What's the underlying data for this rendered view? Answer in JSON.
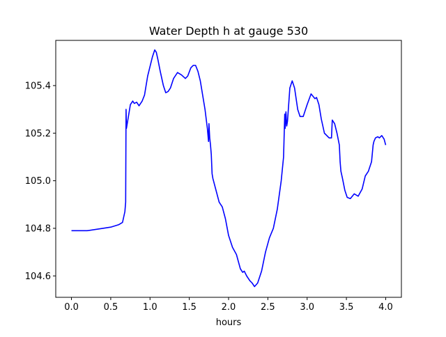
{
  "chart_data": {
    "type": "line",
    "title": "Water Depth h at gauge 530",
    "xlabel": "hours",
    "ylabel": "",
    "xlim": [
      -0.2,
      4.2
    ],
    "ylim": [
      104.51,
      105.59
    ],
    "grid": false,
    "legend": "none",
    "x_ticks": [
      0.0,
      0.5,
      1.0,
      1.5,
      2.0,
      2.5,
      3.0,
      3.5,
      4.0
    ],
    "x_tick_labels": [
      "0.0",
      "0.5",
      "1.0",
      "1.5",
      "2.0",
      "2.5",
      "3.0",
      "3.5",
      "4.0"
    ],
    "y_ticks": [
      104.6,
      104.8,
      105.0,
      105.2,
      105.4
    ],
    "y_tick_labels": [
      "104.6",
      "104.8",
      "105.0",
      "105.2",
      "105.4"
    ],
    "series": [
      {
        "color": "#0000ff",
        "x": [
          0.0,
          0.2,
          0.4,
          0.5,
          0.6,
          0.65,
          0.68,
          0.69,
          0.695,
          0.7,
          0.72,
          0.75,
          0.78,
          0.8,
          0.83,
          0.86,
          0.88,
          0.9,
          0.93,
          0.97,
          1.0,
          1.03,
          1.06,
          1.08,
          1.1,
          1.13,
          1.17,
          1.2,
          1.23,
          1.26,
          1.3,
          1.35,
          1.4,
          1.45,
          1.48,
          1.52,
          1.55,
          1.58,
          1.61,
          1.64,
          1.67,
          1.7,
          1.73,
          1.745,
          1.75,
          1.76,
          1.77,
          1.78,
          1.79,
          1.8,
          1.84,
          1.88,
          1.92,
          1.96,
          2.0,
          2.05,
          2.1,
          2.15,
          2.18,
          2.2,
          2.23,
          2.27,
          2.3,
          2.33,
          2.37,
          2.42,
          2.47,
          2.52,
          2.57,
          2.62,
          2.67,
          2.7,
          2.715,
          2.72,
          2.725,
          2.73,
          2.74,
          2.75,
          2.78,
          2.81,
          2.84,
          2.88,
          2.91,
          2.95,
          3.0,
          3.05,
          3.1,
          3.12,
          3.15,
          3.18,
          3.22,
          3.28,
          3.31,
          3.32,
          3.35,
          3.38,
          3.41,
          3.42,
          3.43,
          3.45,
          3.48,
          3.51,
          3.55,
          3.6,
          3.65,
          3.7,
          3.74,
          3.78,
          3.82,
          3.84,
          3.85,
          3.87,
          3.9,
          3.92,
          3.95,
          3.98,
          4.0
        ],
        "y": [
          104.79,
          104.79,
          104.8,
          104.805,
          104.815,
          104.825,
          104.87,
          104.91,
          105.3,
          105.22,
          105.26,
          105.32,
          105.335,
          105.325,
          105.33,
          105.315,
          105.325,
          105.335,
          105.36,
          105.44,
          105.48,
          105.52,
          105.55,
          105.54,
          105.51,
          105.46,
          105.4,
          105.37,
          105.375,
          105.39,
          105.43,
          105.455,
          105.445,
          105.43,
          105.44,
          105.475,
          105.485,
          105.485,
          105.46,
          105.42,
          105.36,
          105.3,
          105.22,
          105.165,
          105.24,
          105.18,
          105.15,
          105.11,
          105.03,
          105.01,
          104.96,
          104.91,
          104.89,
          104.84,
          104.77,
          104.72,
          104.69,
          104.63,
          104.615,
          104.62,
          104.6,
          104.58,
          104.57,
          104.555,
          104.57,
          104.62,
          104.7,
          104.76,
          104.8,
          104.88,
          105.0,
          105.1,
          105.28,
          105.22,
          105.25,
          105.29,
          105.23,
          105.25,
          105.39,
          105.42,
          105.39,
          105.3,
          105.27,
          105.27,
          105.32,
          105.365,
          105.345,
          105.35,
          105.32,
          105.26,
          105.2,
          105.18,
          105.18,
          105.255,
          105.24,
          105.2,
          105.15,
          105.08,
          105.04,
          105.01,
          104.96,
          104.93,
          104.925,
          104.945,
          104.935,
          104.965,
          105.02,
          105.04,
          105.08,
          105.15,
          105.165,
          105.18,
          105.185,
          105.18,
          105.19,
          105.175,
          105.15
        ]
      }
    ]
  }
}
